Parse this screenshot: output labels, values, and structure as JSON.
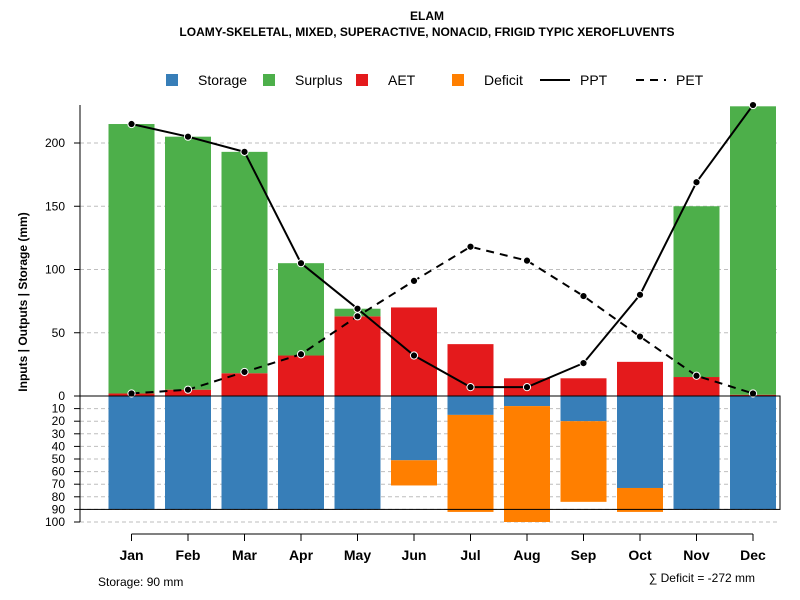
{
  "chart_data": {
    "type": "bar",
    "title": "ELAM",
    "subtitle": "LOAMY-SKELETAL, MIXED, SUPERACTIVE, NONACID, FRIGID TYPIC XEROFLUVENTS",
    "ylabel": "Inputs | Outputs | Storage    (mm)",
    "ylim_top": [
      0,
      230
    ],
    "yticks_top": [
      0,
      50,
      100,
      150,
      200
    ],
    "yticks_bottom": [
      10,
      20,
      30,
      40,
      50,
      60,
      70,
      80,
      90,
      100
    ],
    "categories": [
      "Jan",
      "Feb",
      "Mar",
      "Apr",
      "May",
      "Jun",
      "Jul",
      "Aug",
      "Sep",
      "Oct",
      "Nov",
      "Dec"
    ],
    "legend": [
      {
        "name": "Storage",
        "kind": "box",
        "color": "#377EB8"
      },
      {
        "name": "Surplus",
        "kind": "box",
        "color": "#4DAF4A"
      },
      {
        "name": "AET",
        "kind": "box",
        "color": "#E41A1C"
      },
      {
        "name": "Deficit",
        "kind": "box",
        "color": "#FF7F00"
      },
      {
        "name": "PPT",
        "kind": "solid"
      },
      {
        "name": "PET",
        "kind": "dashed"
      }
    ],
    "series": {
      "AET": [
        2,
        5,
        18,
        32,
        63,
        70,
        41,
        14,
        14,
        27,
        15,
        1
      ],
      "Surplus": [
        213,
        200,
        175,
        73,
        6,
        0,
        0,
        0,
        0,
        0,
        135,
        228
      ],
      "Storage": [
        90,
        90,
        90,
        90,
        90,
        51,
        15,
        8,
        20,
        73,
        90,
        90
      ],
      "Deficit": [
        0,
        0,
        0,
        0,
        0,
        20,
        77,
        92,
        64,
        19,
        0,
        0
      ],
      "PPT": [
        215,
        205,
        193,
        105,
        69,
        32,
        7,
        7,
        26,
        80,
        169,
        230
      ],
      "PET": [
        2,
        5,
        19,
        33,
        63,
        91,
        118,
        107,
        79,
        47,
        16,
        2
      ]
    },
    "storage_capacity": 90,
    "colors": {
      "storage": "#377EB8",
      "surplus": "#4DAF4A",
      "aet": "#E41A1C",
      "deficit": "#FF7F00",
      "grid": "#BEBEBE",
      "line": "#000000"
    }
  },
  "footer": {
    "storage_label": "Storage: 90 mm",
    "deficit_label": "∑ Deficit = -272 mm"
  }
}
